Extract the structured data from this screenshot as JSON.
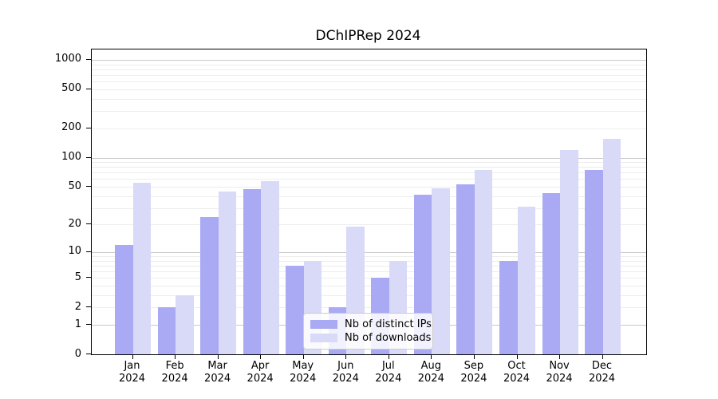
{
  "title": "DChIPRep 2024",
  "colors": {
    "distinct_ips": "#a9a9f4",
    "downloads": "#d9d9f8",
    "grid_major": "#c9c9c9",
    "grid_minor": "#ededed",
    "axis": "#000000",
    "legend_border": "#cccccc"
  },
  "legend": {
    "position": "lower center",
    "items": [
      {
        "label": "Nb of distinct IPs"
      },
      {
        "label": "Nb of downloads"
      }
    ]
  },
  "axes": {
    "x_tick_months": [
      "Jan",
      "Feb",
      "Mar",
      "Apr",
      "May",
      "Jun",
      "Jul",
      "Aug",
      "Sep",
      "Oct",
      "Nov",
      "Dec"
    ],
    "x_tick_year": "2024",
    "y_tick_labels": [
      "0",
      "1",
      "2",
      "5",
      "10",
      "20",
      "50",
      "100",
      "200",
      "500",
      "1000"
    ]
  },
  "chart_data": {
    "type": "bar",
    "title": "DChIPRep 2024",
    "xlabel": "",
    "ylabel": "",
    "yscale": "log1p",
    "ylim": [
      0,
      1274
    ],
    "grid": "horizontal log gridlines, majors at decades",
    "legend_position": "lower center inside axes",
    "categories": [
      "Jan 2024",
      "Feb 2024",
      "Mar 2024",
      "Apr 2024",
      "May 2024",
      "Jun 2024",
      "Jul 2024",
      "Aug 2024",
      "Sep 2024",
      "Oct 2024",
      "Nov 2024",
      "Dec 2024"
    ],
    "series": [
      {
        "name": "Nb of distinct IPs",
        "color": "#a9a9f4",
        "values": [
          12,
          2,
          24,
          47,
          7,
          2,
          5,
          41,
          53,
          8,
          43,
          74
        ]
      },
      {
        "name": "Nb of downloads",
        "color": "#d9d9f8",
        "values": [
          55,
          3,
          45,
          57,
          8,
          19,
          8,
          48,
          75,
          31,
          120,
          155
        ]
      }
    ],
    "yticks": [
      0,
      1,
      2,
      5,
      10,
      20,
      50,
      100,
      200,
      500,
      1000
    ],
    "minor_gridline_values": [
      2,
      3,
      4,
      5,
      6,
      7,
      8,
      9,
      20,
      30,
      40,
      50,
      60,
      70,
      80,
      90,
      200,
      300,
      400,
      500,
      600,
      700,
      800,
      900
    ]
  }
}
